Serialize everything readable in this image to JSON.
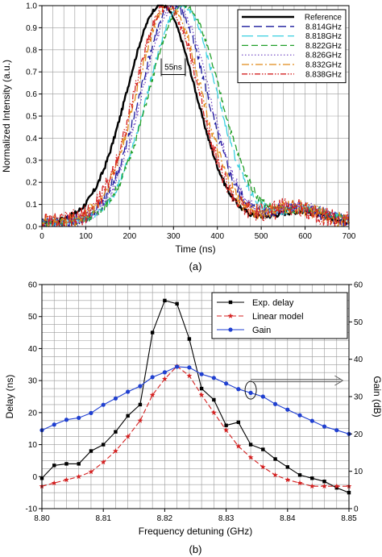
{
  "chart_data": [
    {
      "type": "line",
      "panel_label": "(a)",
      "xlabel": "Time (ns)",
      "ylabel": "Normalized Intensity (a.u.)",
      "xlim": [
        0,
        700
      ],
      "ylim": [
        0,
        1.0
      ],
      "xticks": [
        0,
        100,
        200,
        300,
        400,
        500,
        600,
        700
      ],
      "yticks": [
        0.0,
        0.1,
        0.2,
        0.3,
        0.4,
        0.5,
        0.6,
        0.7,
        0.8,
        0.9,
        1.0
      ],
      "grid": true,
      "legend_position": "top-right",
      "annotation": {
        "text": "55ns",
        "from_x": 272,
        "to_x": 327,
        "y": 0.71
      },
      "series": [
        {
          "name": "Reference",
          "color": "#000000",
          "dash": "",
          "width": 2.4,
          "center": 272,
          "sigma": 78,
          "bump_center": 585,
          "bump_amp": 0.05,
          "noise": 0.012,
          "x": [
            0,
            50,
            100,
            150,
            200,
            250,
            272,
            300,
            350,
            400,
            450,
            500,
            550,
            585,
            620,
            660,
            700
          ],
          "y": [
            0.02,
            0.05,
            0.14,
            0.33,
            0.64,
            0.95,
            1.0,
            0.94,
            0.62,
            0.27,
            0.06,
            0.01,
            0.04,
            0.05,
            0.04,
            0.02,
            0.02
          ]
        },
        {
          "name": "8.814GHz",
          "color": "#1a1a9c",
          "dash": "10,5",
          "width": 1.3,
          "center": 300,
          "sigma": 75,
          "bump_center": 580,
          "bump_amp": 0.07,
          "noise": 0.03,
          "x": [
            0,
            100,
            200,
            300,
            400,
            500,
            580,
            700
          ],
          "y": [
            0.04,
            0.06,
            0.45,
            0.98,
            0.38,
            0.03,
            0.07,
            0.02
          ]
        },
        {
          "name": "8.818GHz",
          "color": "#3ad0e0",
          "dash": "14,5",
          "width": 1.3,
          "center": 320,
          "sigma": 78,
          "bump_center": 600,
          "bump_amp": 0.06,
          "noise": 0.02,
          "x": [
            0,
            100,
            200,
            320,
            400,
            500,
            600,
            700
          ],
          "y": [
            0.02,
            0.04,
            0.34,
            0.98,
            0.56,
            0.07,
            0.06,
            0.02
          ]
        },
        {
          "name": "8.822GHz",
          "color": "#22a02a",
          "dash": "8,4",
          "width": 1.3,
          "center": 325,
          "sigma": 80,
          "bump_center": 600,
          "bump_amp": 0.06,
          "noise": 0.02,
          "x": [
            0,
            100,
            200,
            325,
            400,
            500,
            600,
            700
          ],
          "y": [
            0.02,
            0.04,
            0.3,
            0.99,
            0.61,
            0.09,
            0.06,
            0.02
          ]
        },
        {
          "name": "8.826GHz",
          "color": "#6a3fc0",
          "dash": "1.5,2.5",
          "width": 1.2,
          "center": 305,
          "sigma": 75,
          "bump_center": 585,
          "bump_amp": 0.07,
          "noise": 0.03,
          "x": [
            0,
            100,
            200,
            305,
            400,
            500,
            585,
            700
          ],
          "y": [
            0.04,
            0.07,
            0.42,
            0.97,
            0.42,
            0.05,
            0.07,
            0.02
          ]
        },
        {
          "name": "8.832GHz",
          "color": "#e08a1a",
          "dash": "9,3,2,3",
          "width": 1.3,
          "center": 290,
          "sigma": 74,
          "bump_center": 575,
          "bump_amp": 0.07,
          "noise": 0.035,
          "x": [
            0,
            100,
            200,
            290,
            400,
            500,
            575,
            700
          ],
          "y": [
            0.05,
            0.08,
            0.54,
            0.97,
            0.3,
            0.03,
            0.07,
            0.03
          ]
        },
        {
          "name": "8.838GHz",
          "color": "#d42020",
          "dash": "7,2,1.5,2,1.5,2",
          "width": 1.3,
          "center": 285,
          "sigma": 73,
          "bump_center": 570,
          "bump_amp": 0.07,
          "noise": 0.045,
          "x": [
            0,
            100,
            200,
            285,
            400,
            500,
            570,
            700
          ],
          "y": [
            0.05,
            0.09,
            0.56,
            0.97,
            0.27,
            0.04,
            0.07,
            0.04
          ]
        }
      ]
    },
    {
      "type": "line",
      "panel_label": "(b)",
      "xlabel": "Frequency detuning (GHz)",
      "ylabel": "Delay (ns)",
      "y2label": "Gain (dB)",
      "xlim": [
        8.8,
        8.85
      ],
      "ylim": [
        -10,
        60
      ],
      "y2lim": [
        0,
        60
      ],
      "xticks": [
        8.8,
        8.81,
        8.82,
        8.83,
        8.84,
        8.85
      ],
      "xtick_labels": [
        "8.80",
        "8.81",
        "8.82",
        "8.83",
        "8.84",
        "8.85"
      ],
      "yticks": [
        -10,
        0,
        10,
        20,
        30,
        40,
        50,
        60
      ],
      "y2ticks": [
        0,
        10,
        20,
        30,
        40,
        50,
        60
      ],
      "grid": true,
      "legend_position": "top-right",
      "series": [
        {
          "name": "Exp. delay",
          "axis": "left",
          "color": "#000000",
          "marker": "square",
          "dash": "",
          "x": [
            8.8,
            8.802,
            8.804,
            8.806,
            8.808,
            8.81,
            8.812,
            8.814,
            8.816,
            8.818,
            8.82,
            8.822,
            8.824,
            8.826,
            8.828,
            8.83,
            8.832,
            8.834,
            8.836,
            8.838,
            8.84,
            8.842,
            8.844,
            8.846,
            8.848,
            8.85
          ],
          "y": [
            -0.5,
            3.5,
            4.0,
            4.0,
            8.0,
            10.0,
            14.0,
            19.0,
            22.5,
            45.0,
            55.0,
            54.0,
            43.0,
            27.5,
            24.0,
            16.0,
            17.0,
            10.0,
            8.5,
            5.5,
            3.0,
            0.5,
            -0.5,
            -1.5,
            -3.5,
            -5.0
          ]
        },
        {
          "name": "Linear model",
          "axis": "left",
          "color": "#d42020",
          "marker": "star",
          "dash": "6,3",
          "x": [
            8.8,
            8.802,
            8.804,
            8.806,
            8.808,
            8.81,
            8.812,
            8.814,
            8.816,
            8.818,
            8.82,
            8.822,
            8.824,
            8.826,
            8.828,
            8.83,
            8.832,
            8.834,
            8.836,
            8.838,
            8.84,
            8.842,
            8.844,
            8.846,
            8.848,
            8.85
          ],
          "y": [
            -3.0,
            -2.0,
            -1.0,
            0.0,
            1.5,
            4.5,
            8.0,
            12.5,
            17.5,
            25.5,
            30.5,
            34.5,
            31.5,
            25.5,
            20.0,
            14.5,
            9.5,
            6.0,
            3.0,
            0.5,
            -1.0,
            -2.0,
            -3.0,
            -3.0,
            -3.0,
            -3.0
          ]
        },
        {
          "name": "Gain",
          "axis": "right",
          "color": "#1f3fd0",
          "marker": "circle",
          "dash": "",
          "x": [
            8.8,
            8.802,
            8.804,
            8.806,
            8.808,
            8.81,
            8.812,
            8.814,
            8.816,
            8.818,
            8.82,
            8.822,
            8.824,
            8.826,
            8.828,
            8.83,
            8.832,
            8.834,
            8.836,
            8.838,
            8.84,
            8.842,
            8.844,
            8.846,
            8.848,
            8.85
          ],
          "y": [
            21.0,
            22.5,
            23.8,
            24.3,
            25.6,
            27.8,
            29.5,
            31.3,
            32.8,
            35.2,
            36.5,
            38.0,
            37.8,
            36.0,
            35.0,
            33.5,
            32.0,
            31.0,
            30.0,
            28.0,
            26.5,
            25.0,
            23.5,
            22.0,
            21.0,
            20.0
          ]
        }
      ],
      "annotations": [
        {
          "kind": "ellipse",
          "x": 8.834,
          "y": 27,
          "axis": "left"
        },
        {
          "kind": "arrow",
          "from_x": 8.834,
          "to_x": 8.849,
          "y": 30,
          "axis": "left"
        }
      ]
    }
  ]
}
